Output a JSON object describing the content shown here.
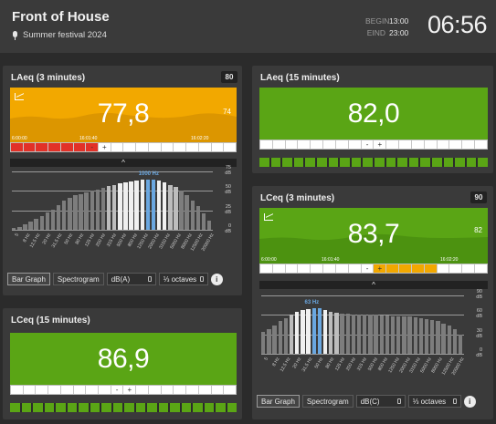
{
  "header": {
    "title": "Front of House",
    "subtitle": "Summer festival 2024",
    "begin_label": "BEGIN",
    "begin_time": "13:00",
    "end_label": "EIND",
    "end_time": "23:00",
    "clock": "06:56"
  },
  "colors": {
    "amber": "#f2a800",
    "green": "#5aa515",
    "red": "#e23128",
    "highlight_blue": "#6aa7e0",
    "background": "#2b2b2b",
    "panel": "#3a3a3a"
  },
  "panels": {
    "laeq3": {
      "title": "LAeq (3 minutes)",
      "limit": "80",
      "value": "77,8",
      "peak": "74",
      "time_labels": [
        "6:00:00",
        "16:01:40",
        "16:02:20"
      ],
      "indicator": {
        "minus": "-",
        "plus": "+"
      },
      "controls": {
        "bar_graph": "Bar Graph",
        "spectrogram": "Spectrogram",
        "weighting": "dB(A)",
        "bands": "⅓ octaves",
        "info": "i"
      },
      "spectrum": {
        "db_labels": [
          "75",
          "dB",
          "50",
          "dB",
          "25",
          "dB",
          "0",
          "dB"
        ],
        "highlight_label": "1000 Hz",
        "freq_labels": [
          "5",
          "8 Hz",
          "12.5 Hz",
          "20 Hz",
          "31.5 Hz",
          "50 Hz",
          "80 Hz",
          "125 Hz",
          "200 Hz",
          "315 Hz",
          "500 Hz",
          "800 Hz",
          "1250 Hz",
          "2000 Hz",
          "3150 Hz",
          "5000 Hz",
          "8000 Hz",
          "12500 Hz",
          "20000 Hz"
        ]
      }
    },
    "laeq15": {
      "title": "LAeq (15 minutes)",
      "value": "82,0",
      "indicator": {
        "minus": "-",
        "plus": "+"
      }
    },
    "lceq3": {
      "title": "LCeq (3 minutes)",
      "limit": "90",
      "value": "83,7",
      "peak": "82",
      "time_labels": [
        "6:00:00",
        "16:01:40",
        "16:02:20"
      ],
      "indicator": {
        "minus": "-",
        "plus": "+"
      },
      "controls": {
        "bar_graph": "Bar Graph",
        "spectrogram": "Spectrogram",
        "weighting": "dB(C)",
        "bands": "⅓ octaves",
        "info": "i"
      },
      "spectrum": {
        "db_labels": [
          "90",
          "dB",
          "60",
          "dB",
          "30",
          "dB",
          "0",
          "dB"
        ],
        "highlight_label": "63 Hz",
        "freq_labels": [
          "5",
          "8 Hz",
          "12.5 Hz",
          "20 Hz",
          "31.5 Hz",
          "50 Hz",
          "80 Hz",
          "125 Hz",
          "200 Hz",
          "315 Hz",
          "500 Hz",
          "800 Hz",
          "1250 Hz",
          "2000 Hz",
          "3150 Hz",
          "5000 Hz",
          "8000 Hz",
          "12500 Hz",
          "20000 Hz"
        ]
      }
    },
    "lceq15": {
      "title": "LCeq (15 minutes)",
      "value": "86,9",
      "indicator": {
        "minus": "-",
        "plus": "+"
      }
    }
  },
  "chart_data": [
    {
      "type": "bar",
      "title": "LAeq (3 minutes) ⅓ octave spectrum",
      "ylabel": "dB",
      "ylim": [
        0,
        75
      ],
      "highlight": "1000 Hz",
      "values": [
        2,
        4,
        7,
        10,
        14,
        18,
        22,
        26,
        32,
        37,
        41,
        44,
        46,
        48,
        50,
        52,
        54,
        56,
        58,
        60,
        61,
        62,
        63,
        64,
        65,
        64,
        63,
        61,
        58,
        55,
        50,
        44,
        38,
        30,
        21,
        12
      ]
    },
    {
      "type": "bar",
      "title": "LCeq (3 minutes) ⅓ octave spectrum",
      "ylabel": "dB",
      "ylim": [
        0,
        90
      ],
      "highlight": "63 Hz",
      "values": [
        34,
        38,
        44,
        50,
        55,
        60,
        64,
        67,
        69,
        70,
        70,
        67,
        64,
        63,
        62,
        62,
        61,
        61,
        60,
        60,
        60,
        59,
        59,
        58,
        58,
        57,
        57,
        56,
        55,
        54,
        52,
        50,
        47,
        43,
        38,
        30
      ]
    }
  ]
}
